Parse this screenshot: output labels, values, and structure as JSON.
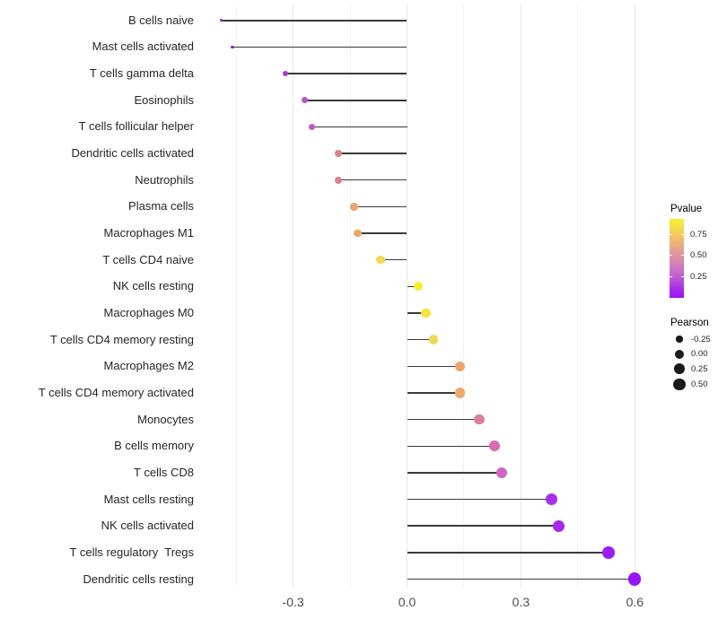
{
  "chart_data": {
    "type": "scatter",
    "variant": "horizontal-lollipop",
    "title": "",
    "xlabel": "",
    "ylabel": "",
    "xlim": [
      -0.57,
      0.63
    ],
    "baseline_x": 0.0,
    "grid": "vertical-only",
    "x_major_ticks": [
      -0.3,
      0.0,
      0.3,
      0.6
    ],
    "x_tick_labels": [
      "-0.3",
      "0.0",
      "0.3",
      "0.6"
    ],
    "x_minor_ticks": [
      -0.45,
      -0.15,
      0.15,
      0.45
    ],
    "points": [
      {
        "label": "B cells naive",
        "pearson": -0.49,
        "pvalue_est": 0.02,
        "color": "#8B1FD9"
      },
      {
        "label": "Mast cells activated",
        "pearson": -0.46,
        "pvalue_est": 0.03,
        "color": "#921CDC"
      },
      {
        "label": "T cells gamma delta",
        "pearson": -0.32,
        "pvalue_est": 0.15,
        "color": "#A83BD2"
      },
      {
        "label": "Eosinophils",
        "pearson": -0.27,
        "pvalue_est": 0.22,
        "color": "#BC52C6"
      },
      {
        "label": "T cells follicular helper",
        "pearson": -0.25,
        "pvalue_est": 0.26,
        "color": "#C35BC0"
      },
      {
        "label": "Dendritic cells activated",
        "pearson": -0.18,
        "pvalue_est": 0.45,
        "color": "#DD8287"
      },
      {
        "label": "Neutrophils",
        "pearson": -0.18,
        "pvalue_est": 0.45,
        "color": "#DD8389"
      },
      {
        "label": "Plasma cells",
        "pearson": -0.14,
        "pvalue_est": 0.62,
        "color": "#EAA46C"
      },
      {
        "label": "Macrophages M1",
        "pearson": -0.13,
        "pvalue_est": 0.63,
        "color": "#EAA56C"
      },
      {
        "label": "T cells CD4 naive",
        "pearson": -0.07,
        "pvalue_est": 0.8,
        "color": "#F2DC4D"
      },
      {
        "label": "NK cells resting",
        "pearson": 0.03,
        "pvalue_est": 0.9,
        "color": "#F7EC2C"
      },
      {
        "label": "Macrophages M0",
        "pearson": 0.05,
        "pvalue_est": 0.87,
        "color": "#F5E53C"
      },
      {
        "label": "T cells CD4 memory resting",
        "pearson": 0.07,
        "pvalue_est": 0.78,
        "color": "#F1D957"
      },
      {
        "label": "Macrophages M2",
        "pearson": 0.14,
        "pvalue_est": 0.63,
        "color": "#EAA56E"
      },
      {
        "label": "T cells CD4 memory activated",
        "pearson": 0.14,
        "pvalue_est": 0.64,
        "color": "#EBA96D"
      },
      {
        "label": "Monocytes",
        "pearson": 0.19,
        "pvalue_est": 0.47,
        "color": "#DC7E9E"
      },
      {
        "label": "B cells memory",
        "pearson": 0.23,
        "pvalue_est": 0.38,
        "color": "#D76BB5"
      },
      {
        "label": "T cells CD8",
        "pearson": 0.25,
        "pvalue_est": 0.33,
        "color": "#D164C3"
      },
      {
        "label": "Mast cells resting",
        "pearson": 0.38,
        "pvalue_est": 0.1,
        "color": "#A930E9"
      },
      {
        "label": "NK cells activated",
        "pearson": 0.4,
        "pvalue_est": 0.09,
        "color": "#A528ED"
      },
      {
        "label": "T cells regulatory  Tregs",
        "pearson": 0.53,
        "pvalue_est": 0.04,
        "color": "#9C1CF3"
      },
      {
        "label": "Dendritic cells resting",
        "pearson": 0.6,
        "pvalue_est": 0.02,
        "color": "#9712F6"
      }
    ],
    "legend_pvalue": {
      "title": "Pvalue",
      "tick_labels": [
        "0.75",
        "0.50",
        "0.25"
      ],
      "tick_values": [
        0.75,
        0.5,
        0.25
      ],
      "bar_range": [
        0.0,
        0.93
      ],
      "gradient_top_to_bottom": [
        "#F9EE30",
        "#F6DC48",
        "#F1C364",
        "#EAAC82",
        "#E1979C",
        "#D683B2",
        "#CA6CC6",
        "#B94FD8",
        "#A72BEA",
        "#9B12F4"
      ]
    },
    "legend_pearson": {
      "title": "Pearson",
      "items": [
        {
          "label": "-0.25",
          "value": -0.25
        },
        {
          "label": "0.00",
          "value": 0.0
        },
        {
          "label": "0.25",
          "value": 0.25
        },
        {
          "label": "0.50",
          "value": 0.5
        }
      ]
    },
    "colors": {
      "stem": "#3a3a3a",
      "grid_major": "#e7e7e7",
      "grid_minor": "#f2f2f2",
      "axis_text_x": "#4d4d4d",
      "axis_text_y": "#262626",
      "legend_text": "#1f1f1f",
      "legend_dot": "#1a1a1a",
      "background": "#ffffff"
    }
  }
}
